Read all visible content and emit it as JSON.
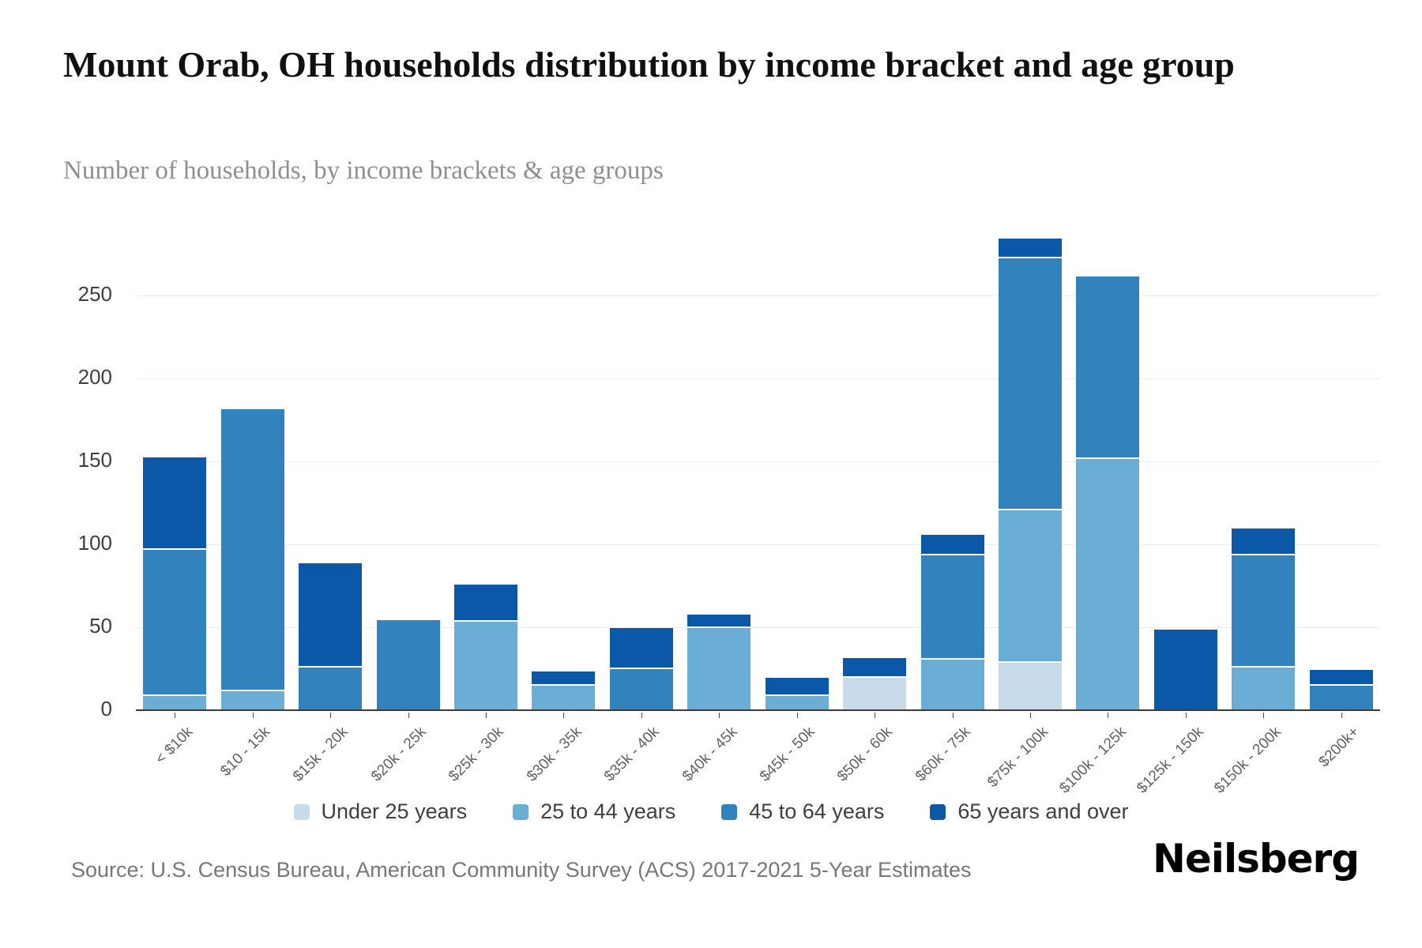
{
  "header": {
    "title": "Mount Orab, OH households distribution by income bracket and age group",
    "subtitle": "Number of households, by income brackets & age groups"
  },
  "chart_data": {
    "type": "bar",
    "stacked": true,
    "title": "Mount Orab, OH households distribution by income bracket and age group",
    "xlabel": "",
    "ylabel": "Number of households",
    "ylim": [
      0,
      290
    ],
    "yticks": [
      0,
      50,
      100,
      150,
      200,
      250
    ],
    "grid": true,
    "legend_position": "bottom",
    "categories": [
      "< $10k",
      "$10 - 15k",
      "$15k - 20k",
      "$20k - 25k",
      "$25k - 30k",
      "$30k - 35k",
      "$35k - 40k",
      "$40k - 45k",
      "$45k - 50k",
      "$50k - 60k",
      "$60k - 75k",
      "$75k - 100k",
      "$100k - 125k",
      "$125k - 150k",
      "$150k - 200k",
      "$200k+"
    ],
    "series": [
      {
        "name": "Under 25 years",
        "color": "#c7dbeb",
        "values": [
          0,
          0,
          0,
          0,
          0,
          0,
          0,
          0,
          0,
          21,
          0,
          30,
          0,
          0,
          0,
          0
        ]
      },
      {
        "name": "25 to 44 years",
        "color": "#6aaed6",
        "values": [
          10,
          13,
          0,
          0,
          55,
          16,
          0,
          51,
          10,
          0,
          32,
          92,
          153,
          0,
          27,
          0
        ]
      },
      {
        "name": "45 to 64 years",
        "color": "#3182bd",
        "values": [
          88,
          169,
          27,
          55,
          0,
          0,
          26,
          0,
          0,
          0,
          63,
          152,
          109,
          0,
          68,
          16
        ]
      },
      {
        "name": "65 years and over",
        "color": "#0b58a8",
        "values": [
          55,
          0,
          62,
          0,
          21,
          8,
          24,
          7,
          10,
          11,
          11,
          11,
          0,
          49,
          15,
          9
        ]
      }
    ],
    "totals": [
      153,
      182,
      89,
      55,
      76,
      24,
      50,
      58,
      20,
      32,
      106,
      285,
      262,
      49,
      110,
      25
    ]
  },
  "footer": {
    "source": "Source: U.S. Census Bureau, American Community Survey (ACS) 2017-2021 5-Year Estimates",
    "brand": "Neilsberg"
  }
}
